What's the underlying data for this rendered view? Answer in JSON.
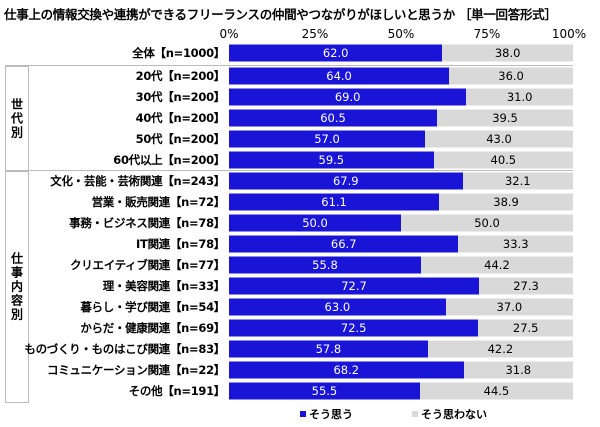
{
  "chart_data": {
    "type": "bar",
    "stacked": true,
    "orientation": "horizontal",
    "title": "仕事上の情報交換や連携ができるフリーランスの仲間やつながりがほしいと思うか ［単一回答形式］",
    "xticks": [
      "0%",
      "25%",
      "50%",
      "75%",
      "100%"
    ],
    "xlim": [
      0,
      100
    ],
    "groups": [
      {
        "label": "世代別",
        "start": 1,
        "end": 5
      },
      {
        "label": "仕事内容別",
        "start": 6,
        "end": 16
      }
    ],
    "categories": [
      "全体【n=1000】",
      "20代【n=200】",
      "30代【n=200】",
      "40代【n=200】",
      "50代【n=200】",
      "60代以上【n=200】",
      "文化・芸能・芸術関連【n=243】",
      "営業・販売関連【n=72】",
      "事務・ビジネス関連【n=78】",
      "IT関連【n=78】",
      "クリエイティブ関連【n=77】",
      "理・美容関連【n=33】",
      "暮らし・学び関連【n=54】",
      "からだ・健康関連【n=69】",
      "ものづくり・ものはこび関連【n=83】",
      "コミュニケーション関連【n=22】",
      "その他【n=191】"
    ],
    "series": [
      {
        "name": "そう思う",
        "color": "#1a14d6",
        "values": [
          62.0,
          64.0,
          69.0,
          60.5,
          57.0,
          59.5,
          67.9,
          61.1,
          50.0,
          66.7,
          55.8,
          72.7,
          63.0,
          72.5,
          57.8,
          68.2,
          55.5
        ],
        "labels": [
          "62.0",
          "64.0",
          "69.0",
          "60.5",
          "57.0",
          "59.5",
          "67.9",
          "61.1",
          "50.0",
          "66.7",
          "55.8",
          "72.7",
          "63.0",
          "72.5",
          "57.8",
          "68.2",
          "55.5"
        ]
      },
      {
        "name": "そう思わない",
        "color": "#d9d9d9",
        "values": [
          38.0,
          36.0,
          31.0,
          39.5,
          43.0,
          40.5,
          32.1,
          38.9,
          50.0,
          33.3,
          44.2,
          27.3,
          37.0,
          27.5,
          42.2,
          31.8,
          44.5
        ],
        "labels": [
          "38.0",
          "36.0",
          "31.0",
          "39.5",
          "43.0",
          "40.5",
          "32.1",
          "38.9",
          "50.0",
          "33.3",
          "44.2",
          "27.3",
          "37.0",
          "27.5",
          "42.2",
          "31.8",
          "44.5"
        ]
      }
    ],
    "legend": "bottom"
  }
}
